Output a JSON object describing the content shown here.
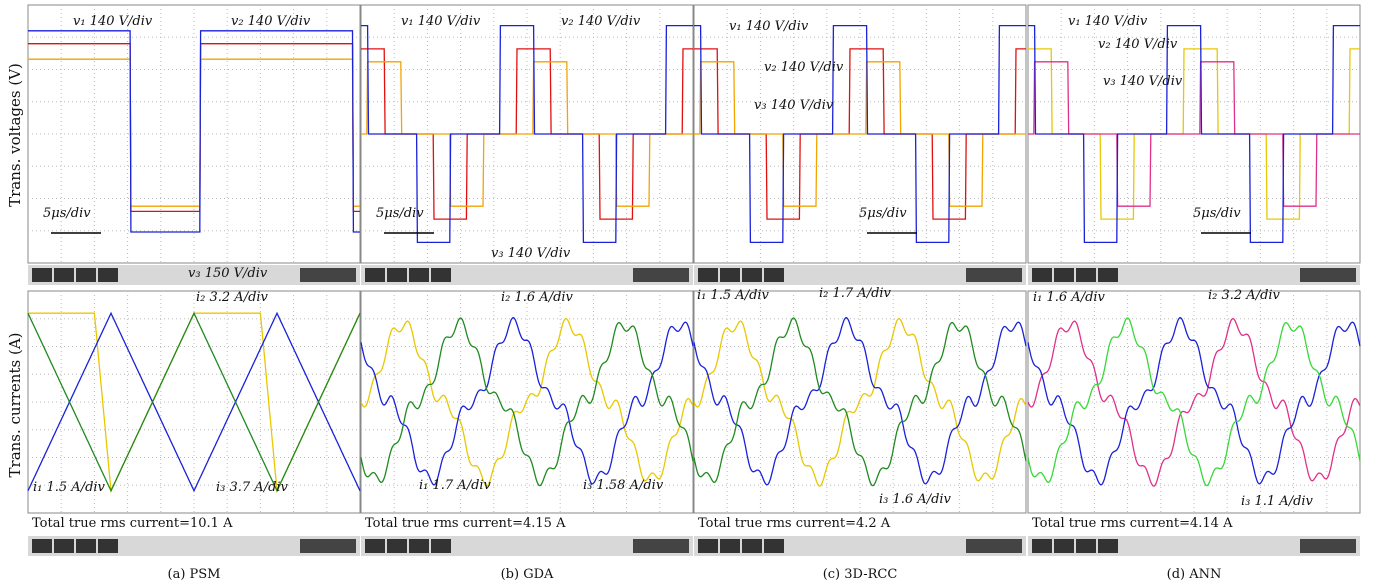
{
  "y_labels": {
    "top": "Trans. voltages (V)",
    "bottom": "Trans. currents (A)"
  },
  "panels": [
    {
      "caption": "(a) PSM",
      "voltage_labels": [
        "v₁ 140 V/div",
        "v₂ 140 V/div",
        "v₃ 150 V/div"
      ],
      "time_scale": "5μs/div",
      "current_labels": [
        "i₂ 3.2 A/div",
        "i₁ 1.5 A/div",
        "i₃ 3.7 A/div"
      ],
      "rms": "Total true rms current=10.1 A"
    },
    {
      "caption": "(b) GDA",
      "voltage_labels": [
        "v₁ 140 V/div",
        "v₂ 140 V/div",
        "v₃ 140 V/div"
      ],
      "time_scale": "5μs/div",
      "current_labels": [
        "i₂ 1.6 A/div",
        "i₁ 1.7 A/div",
        "i₃ 1.58 A/div"
      ],
      "rms": "Total true rms current=4.15 A"
    },
    {
      "caption": "(c) 3D-RCC",
      "voltage_labels": [
        "v₁ 140 V/div",
        "v₂ 140 V/div",
        "v₃ 140 V/div"
      ],
      "time_scale": "5μs/div",
      "current_labels": [
        "i₁ 1.5 A/div",
        "i₂ 1.7 A/div",
        "i₃ 1.6 A/div"
      ],
      "rms": "Total true rms current=4.2 A"
    },
    {
      "caption": "(d) ANN",
      "voltage_labels": [
        "v₁ 140 V/div",
        "v₂ 140 V/div",
        "v₃ 140 V/div"
      ],
      "time_scale": "5μs/div",
      "current_labels": [
        "i₁ 1.6 A/div",
        "i₂ 3.2 A/div",
        "i₃ 1.1 A/div"
      ],
      "rms": "Total true rms current=4.14 A"
    }
  ]
}
